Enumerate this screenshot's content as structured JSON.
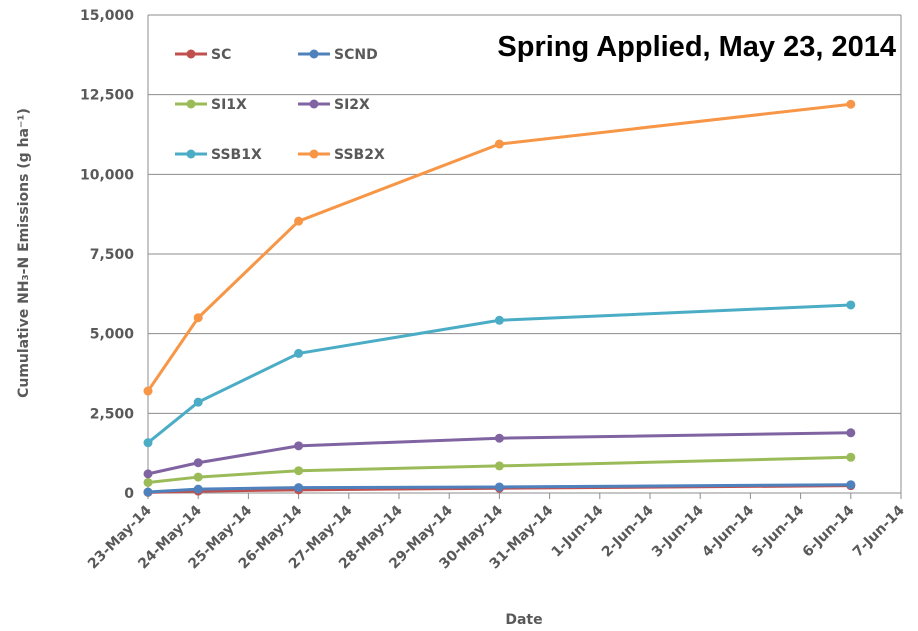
{
  "chart_data": {
    "type": "line",
    "title": "Spring Applied, May 23, 2014",
    "xlabel": "Date",
    "ylabel": "Cumulative NH₃-N Emissions (g ha⁻¹)",
    "x": [
      "2014-05-23",
      "2014-05-24",
      "2014-05-26",
      "2014-05-30",
      "2014-06-06"
    ],
    "xlim": [
      "2014-05-23",
      "2014-06-07"
    ],
    "xticks": [
      {
        "value": "2014-05-23",
        "label": "23-May-14"
      },
      {
        "value": "2014-05-24",
        "label": "24-May-14"
      },
      {
        "value": "2014-05-25",
        "label": "25-May-14"
      },
      {
        "value": "2014-05-26",
        "label": "26-May-14"
      },
      {
        "value": "2014-05-27",
        "label": "27-May-14"
      },
      {
        "value": "2014-05-28",
        "label": "28-May-14"
      },
      {
        "value": "2014-05-29",
        "label": "29-May-14"
      },
      {
        "value": "2014-05-30",
        "label": "30-May-14"
      },
      {
        "value": "2014-05-31",
        "label": "31-May-14"
      },
      {
        "value": "2014-06-01",
        "label": "1-Jun-14"
      },
      {
        "value": "2014-06-02",
        "label": "2-Jun-14"
      },
      {
        "value": "2014-06-03",
        "label": "3-Jun-14"
      },
      {
        "value": "2014-06-04",
        "label": "4-Jun-14"
      },
      {
        "value": "2014-06-05",
        "label": "5-Jun-14"
      },
      {
        "value": "2014-06-06",
        "label": "6-Jun-14"
      },
      {
        "value": "2014-06-07",
        "label": "7-Jun-14"
      }
    ],
    "ylim": [
      0,
      15000
    ],
    "yticks": [
      0,
      {
        "value": 2500,
        "label": "2,500"
      },
      {
        "value": 5000,
        "label": "5,000"
      },
      {
        "value": 7500,
        "label": "7,500"
      },
      {
        "value": 10000,
        "label": "10,000"
      },
      {
        "value": 12500,
        "label": "12,500"
      },
      {
        "value": 15000,
        "label": "15,000"
      }
    ],
    "grid": true,
    "legend": "upper left",
    "series": [
      {
        "name": "SC",
        "color": "#c0504d",
        "values": [
          20,
          60,
          100,
          150,
          230
        ]
      },
      {
        "name": "SCND",
        "color": "#4f81bd",
        "values": [
          30,
          120,
          170,
          190,
          260
        ]
      },
      {
        "name": "SI1X",
        "color": "#9bbb59",
        "values": [
          330,
          500,
          700,
          850,
          1120
        ]
      },
      {
        "name": "SI2X",
        "color": "#8064a2",
        "values": [
          600,
          950,
          1480,
          1720,
          1890
        ]
      },
      {
        "name": "SSB1X",
        "color": "#4bacc6",
        "values": [
          1580,
          2850,
          4380,
          5420,
          5900
        ]
      },
      {
        "name": "SSB2X",
        "color": "#f79646",
        "values": [
          3200,
          5500,
          8530,
          10950,
          12200
        ]
      }
    ]
  }
}
